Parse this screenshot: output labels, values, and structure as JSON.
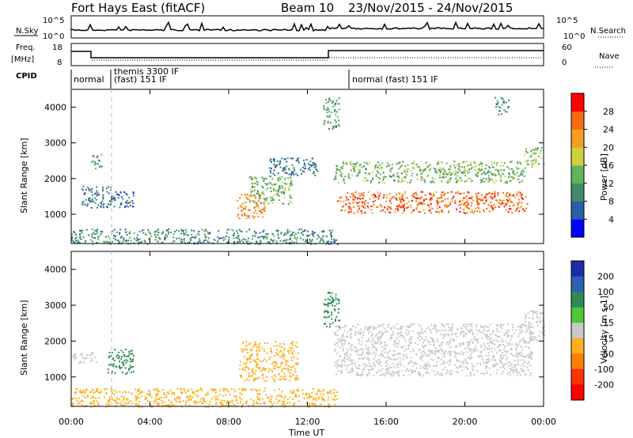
{
  "header": {
    "station": "Fort Hays East (fitACF)",
    "beam": "Beam 10",
    "date_range": "23/Nov/2015 - 24/Nov/2015"
  },
  "strips": {
    "nsky_label": "N.Sky",
    "nsky_ticks": [
      "10^5",
      "10^0"
    ],
    "nsearch_label": "N.Search",
    "nsearch_ticks": [
      "10^5",
      "10^0"
    ],
    "freq_label_1": "Freq.",
    "freq_label_2": "[MHz]",
    "freq_ticks": [
      "18",
      "8"
    ],
    "nave_label": "Nave",
    "nave_ticks": [
      "60",
      "0"
    ],
    "cpid_label": "CPID",
    "cpid_segments": [
      "normal",
      "themis 3300 IF",
      "(fast) 151 IF",
      "normal (fast) 151 IF"
    ]
  },
  "chart_data": [
    {
      "type": "heatmap",
      "name": "power",
      "ylabel": "Slant Range [km]",
      "xlabel": "",
      "x_ticks": [
        "00:00",
        "04:00",
        "08:00",
        "12:00",
        "16:00",
        "20:00",
        "00:00"
      ],
      "xlim_hours": [
        0,
        24
      ],
      "y_ticks": [
        1000,
        2000,
        3000,
        4000
      ],
      "ylim": [
        180,
        4500
      ],
      "colorbar": {
        "label": "Power [dB]",
        "ticks": [
          "4",
          "8",
          "12",
          "16",
          "20",
          "24",
          "28"
        ],
        "range": [
          0,
          30
        ],
        "colors": [
          "#0000ff",
          "#2b5ea8",
          "#3f8a6a",
          "#5fb35a",
          "#cfd040",
          "#f2a020",
          "#f56d10",
          "#ff0000"
        ]
      },
      "regions": [
        {
          "t0": 0.5,
          "t1": 2.2,
          "r0": 1200,
          "r1": 1800,
          "value": 8
        },
        {
          "t0": 1.0,
          "t1": 1.6,
          "r0": 2300,
          "r1": 2700,
          "value": 12
        },
        {
          "t0": 2.0,
          "t1": 3.2,
          "r0": 1200,
          "r1": 1650,
          "value": 7
        },
        {
          "t0": 0.0,
          "t1": 13.5,
          "r0": 180,
          "r1": 600,
          "value": 10
        },
        {
          "t0": 8.4,
          "t1": 9.8,
          "r0": 900,
          "r1": 1600,
          "value": 24
        },
        {
          "t0": 9.0,
          "t1": 11.2,
          "r0": 1300,
          "r1": 2100,
          "value": 14
        },
        {
          "t0": 10.0,
          "t1": 12.5,
          "r0": 2100,
          "r1": 2600,
          "value": 8
        },
        {
          "t0": 12.8,
          "t1": 13.6,
          "r0": 3400,
          "r1": 4300,
          "value": 12
        },
        {
          "t0": 13.3,
          "t1": 23.0,
          "r0": 1900,
          "r1": 2500,
          "value": 14
        },
        {
          "t0": 13.5,
          "t1": 23.2,
          "r0": 1050,
          "r1": 1650,
          "value": 26
        },
        {
          "t0": 21.5,
          "t1": 22.2,
          "r0": 3800,
          "r1": 4300,
          "value": 10
        },
        {
          "t0": 23.0,
          "t1": 24.0,
          "r0": 2300,
          "r1": 2900,
          "value": 16
        }
      ]
    },
    {
      "type": "heatmap",
      "name": "velocity",
      "ylabel": "Slant Range [km]",
      "xlabel": "Time UT",
      "x_ticks": [
        "00:00",
        "04:00",
        "08:00",
        "12:00",
        "16:00",
        "20:00",
        "00:00"
      ],
      "xlim_hours": [
        0,
        24
      ],
      "y_ticks": [
        1000,
        2000,
        3000,
        4000
      ],
      "ylim": [
        180,
        4500
      ],
      "colorbar": {
        "label": "Velocity [m s-1]",
        "ticks": [
          "200",
          "100",
          "50",
          "15",
          "-15",
          "-50",
          "-100",
          "-200"
        ],
        "colors": [
          "#1a2ea8",
          "#2e5fb0",
          "#2e8b57",
          "#4fc63a",
          "#c8c8c8",
          "#ffb020",
          "#ff8000",
          "#ff3300",
          "#ff0000"
        ]
      },
      "regions": [
        {
          "t0": 1.8,
          "t1": 3.2,
          "r0": 1100,
          "r1": 1800,
          "value": 60
        },
        {
          "t0": 0.0,
          "t1": 1.3,
          "r0": 1400,
          "r1": 1700,
          "value": 0
        },
        {
          "t0": 0.0,
          "t1": 13.5,
          "r0": 180,
          "r1": 700,
          "value": -40
        },
        {
          "t0": 8.5,
          "t1": 11.5,
          "r0": 900,
          "r1": 2000,
          "value": -40
        },
        {
          "t0": 13.3,
          "t1": 23.4,
          "r0": 1050,
          "r1": 2500,
          "value": 0
        },
        {
          "t0": 12.8,
          "t1": 13.6,
          "r0": 2400,
          "r1": 3400,
          "value": 60
        },
        {
          "t0": 23.0,
          "t1": 24.0,
          "r0": 2000,
          "r1": 2900,
          "value": 0
        }
      ]
    }
  ]
}
